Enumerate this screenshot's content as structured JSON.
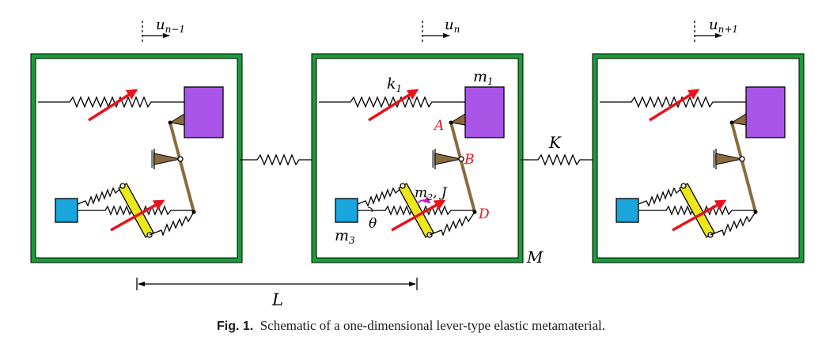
{
  "labels": {
    "u_prev": "u",
    "u_prev_sub": "n−1",
    "u_curr": "u",
    "u_curr_sub": "n",
    "u_next": "u",
    "u_next_sub": "n+1",
    "k1": "k",
    "k1_sub": "1",
    "m1": "m",
    "m1_sub": "1",
    "point_a": "A",
    "point_b": "B",
    "point_d": "D",
    "m2j": "m",
    "m2j_sub": "2",
    "m2j_rest": ", J",
    "theta": "θ",
    "m3": "m",
    "m3_sub": "3",
    "big_m": "M",
    "big_k": "K",
    "length": "L"
  },
  "caption": {
    "fig": "Fig. 1.",
    "text": "Schematic of a one-dimensional lever-type elastic metamaterial."
  },
  "colors": {
    "frame": "#1a9c3a",
    "mass_m1": "#a855e8",
    "mass_m3": "#1aa5dd",
    "lever_bar": "#ece81c",
    "link": "#8b6b3d",
    "arrow": "#e8121c",
    "label_red": "#e8121c"
  }
}
